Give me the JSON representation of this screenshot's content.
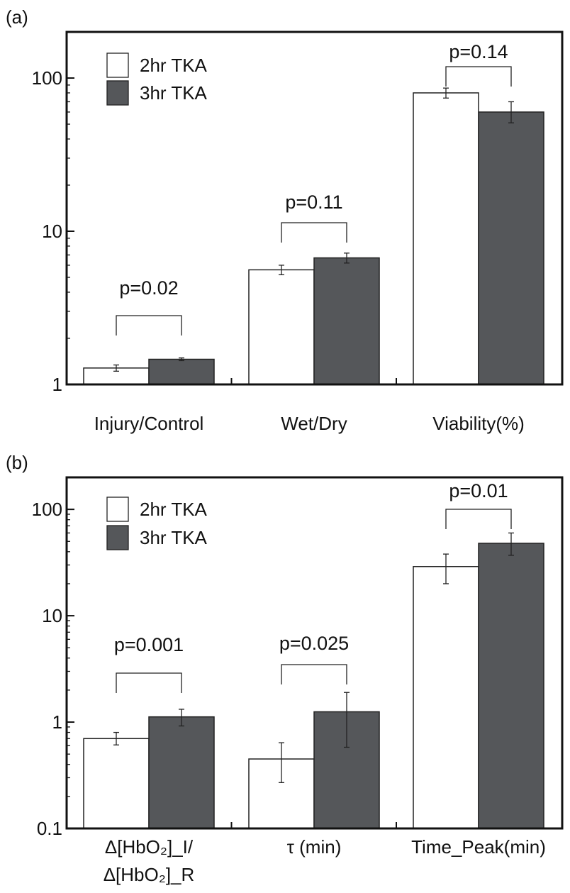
{
  "chart_data": [
    {
      "panel_label": "(a)",
      "type": "bar",
      "y_scale": "log",
      "ylim": [
        1,
        200
      ],
      "yticks": [
        {
          "value": 1,
          "label": "1"
        },
        {
          "value": 10,
          "label": "10"
        },
        {
          "value": 100,
          "label": "100"
        }
      ],
      "categories": [
        {
          "label": "Injury/Control"
        },
        {
          "label": "Wet/Dry"
        },
        {
          "label": "Viability(%)"
        }
      ],
      "series": [
        {
          "name": "2hr TKA",
          "color": "#ffffff",
          "values": [
            1.28,
            5.6,
            80
          ],
          "err_low": [
            1.22,
            5.2,
            74
          ],
          "err_high": [
            1.34,
            6.0,
            86
          ]
        },
        {
          "name": "3hr TKA",
          "color": "#55575a",
          "values": [
            1.46,
            6.7,
            60
          ],
          "err_low": [
            1.43,
            6.2,
            51
          ],
          "err_high": [
            1.49,
            7.2,
            70
          ]
        }
      ],
      "annotations": [
        {
          "text": "p=0.02"
        },
        {
          "text": "p=0.11"
        },
        {
          "text": "p=0.14"
        }
      ],
      "legend": {
        "position": "top-left"
      }
    },
    {
      "panel_label": "(b)",
      "type": "bar",
      "y_scale": "log",
      "ylim": [
        0.1,
        200
      ],
      "yticks": [
        {
          "value": 0.1,
          "label": "0.1"
        },
        {
          "value": 1,
          "label": "1"
        },
        {
          "value": 10,
          "label": "10"
        },
        {
          "value": 100,
          "label": "100"
        }
      ],
      "categories": [
        {
          "label": "Δ[HbO₂]_I/",
          "label2": "Δ[HbO₂]_R"
        },
        {
          "label": "τ (min)"
        },
        {
          "label": "Time_Peak(min)"
        }
      ],
      "series": [
        {
          "name": "2hr TKA",
          "color": "#ffffff",
          "values": [
            0.7,
            0.45,
            29
          ],
          "err_low": [
            0.61,
            0.27,
            20
          ],
          "err_high": [
            0.8,
            0.64,
            38
          ]
        },
        {
          "name": "3hr TKA",
          "color": "#55575a",
          "values": [
            1.12,
            1.25,
            48
          ],
          "err_low": [
            0.92,
            0.58,
            37
          ],
          "err_high": [
            1.32,
            1.9,
            60
          ]
        }
      ],
      "annotations": [
        {
          "text": "p=0.001"
        },
        {
          "text": "p=0.025"
        },
        {
          "text": "p=0.01"
        }
      ],
      "legend": {
        "position": "top-left"
      }
    }
  ]
}
